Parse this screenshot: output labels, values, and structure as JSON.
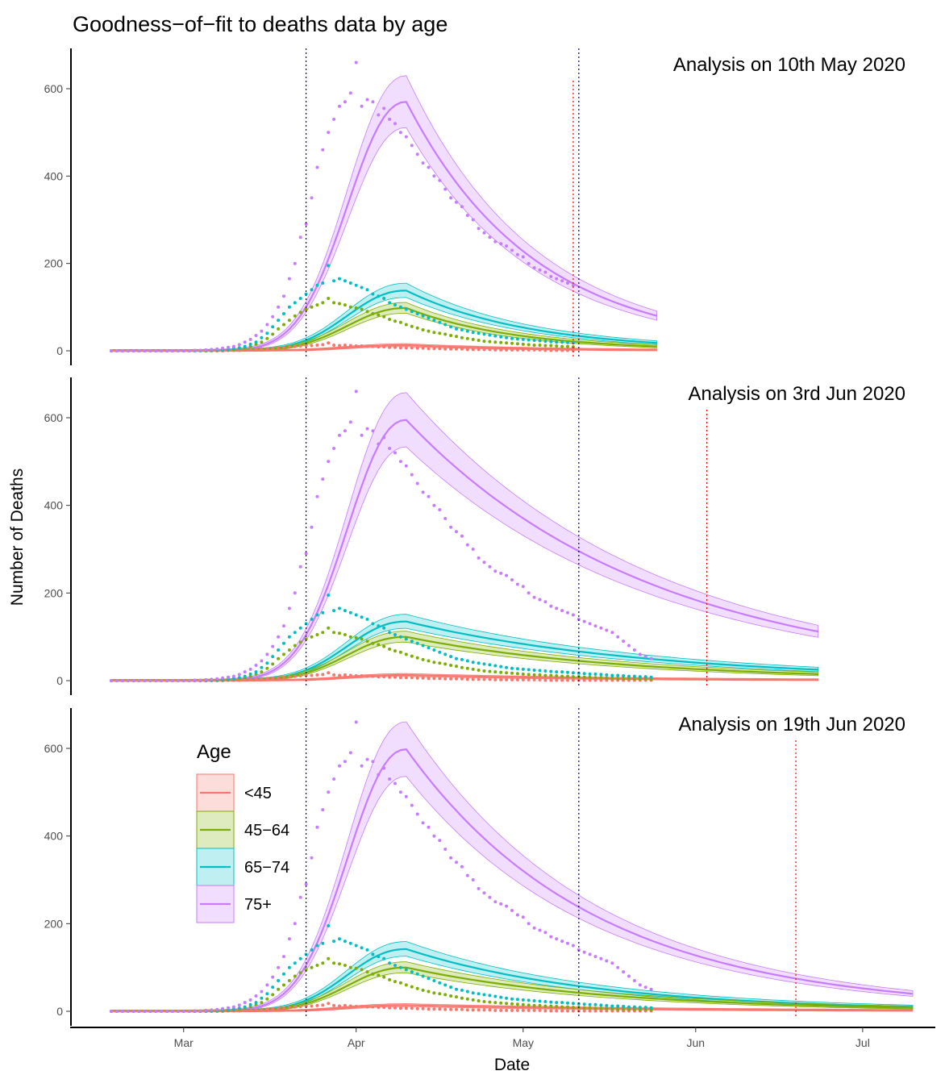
{
  "chart_data": {
    "type": "line",
    "title": "Goodness−of−fit to deaths data by age",
    "xlabel": "Date",
    "ylabel": "Number of Deaths",
    "x_axis": {
      "ticks": [
        {
          "date": "2020-03-01",
          "label": "Mar"
        },
        {
          "date": "2020-04-01",
          "label": "Apr"
        },
        {
          "date": "2020-05-01",
          "label": "May"
        },
        {
          "date": "2020-06-01",
          "label": "Jun"
        },
        {
          "date": "2020-07-01",
          "label": "Jul"
        }
      ],
      "range": [
        "2020-02-17",
        "2020-07-10"
      ]
    },
    "y_axis": {
      "ticks": [
        0,
        200,
        400,
        600
      ],
      "range": [
        -20,
        700
      ]
    },
    "grid": false,
    "legend": {
      "title": "Age",
      "placement": "inside-left-bottom-panel",
      "entries": [
        {
          "key": "lt45",
          "label": "<45"
        },
        {
          "key": "45_64",
          "label": "45−64"
        },
        {
          "key": "65_74",
          "label": "65−74"
        },
        {
          "key": "75p",
          "label": "75+"
        }
      ]
    },
    "series_colors": {
      "lt45": "#F8766D",
      "45_64": "#7CAE00",
      "65_74": "#00BFC4",
      "75p": "#C77CFF"
    },
    "shared_vlines": [
      {
        "date": "2020-03-23",
        "color": "#000080"
      },
      {
        "date": "2020-05-11",
        "color": "#000080"
      }
    ],
    "series_peak_fits": {
      "lt45": {
        "peak_date": "2020-04-09",
        "peak": 14,
        "final": 2
      },
      "45_64": {
        "peak_date": "2020-04-09",
        "peak": 100,
        "final": 8
      },
      "65_74": {
        "peak_date": "2020-04-09",
        "peak": 142,
        "final": 10
      },
      "75p": {
        "peak_date": "2020-04-09",
        "peak": 598,
        "final": 40
      }
    },
    "panels": [
      {
        "title": "Analysis on 10th May 2020",
        "analysis_date": "2020-05-10",
        "fit_end": "2020-05-25",
        "fit_end_values": {
          "lt45": 2,
          "45_64": 10,
          "65_74": 18,
          "75p": 80
        },
        "peaks": {
          "lt45": 13,
          "45_64": 98,
          "65_74": 138,
          "75p": 570
        }
      },
      {
        "title": "Analysis on 3rd Jun 2020",
        "analysis_date": "2020-06-03",
        "fit_end": "2020-06-23",
        "fit_end_values": {
          "lt45": 2,
          "45_64": 15,
          "65_74": 25,
          "75p": 112
        },
        "peaks": {
          "lt45": 13,
          "45_64": 100,
          "65_74": 135,
          "75p": 595
        }
      },
      {
        "title": "Analysis on 19th Jun 2020",
        "analysis_date": "2020-06-19",
        "fit_end": "2020-07-10",
        "fit_end_values": {
          "lt45": 2,
          "45_64": 8,
          "65_74": 10,
          "75p": 40
        },
        "peaks": {
          "lt45": 14,
          "45_64": 100,
          "65_74": 142,
          "75p": 598
        }
      }
    ],
    "observed_data": {
      "start": "2020-02-17",
      "note_dates": "daily values; 75+ up to data cutoff",
      "75p": [
        0,
        0,
        0,
        0,
        0,
        0,
        0,
        0,
        0,
        0,
        0,
        0,
        0,
        0,
        0,
        1,
        1,
        2,
        3,
        4,
        6,
        8,
        10,
        14,
        20,
        26,
        35,
        45,
        60,
        78,
        100,
        125,
        165,
        200,
        260,
        290,
        350,
        420,
        460,
        500,
        530,
        560,
        570,
        590,
        660,
        560,
        575,
        570,
        540,
        555,
        530,
        520,
        500,
        490,
        470,
        450,
        430,
        420,
        400,
        390,
        370,
        350,
        340,
        330,
        310,
        300,
        280,
        270,
        260,
        250,
        245,
        240,
        230,
        220,
        215,
        200,
        190,
        185,
        180,
        170,
        165,
        160,
        155,
        150,
        140,
        135,
        130,
        125,
        120,
        115,
        110,
        100,
        90,
        80,
        70,
        60,
        55,
        50
      ],
      "65_74": [
        0,
        0,
        0,
        0,
        0,
        0,
        0,
        0,
        0,
        0,
        0,
        0,
        0,
        0,
        0,
        0,
        0,
        1,
        1,
        2,
        2,
        3,
        5,
        7,
        10,
        15,
        20,
        30,
        40,
        55,
        70,
        85,
        100,
        110,
        120,
        130,
        140,
        150,
        155,
        195,
        160,
        165,
        160,
        155,
        150,
        145,
        140,
        130,
        125,
        120,
        110,
        105,
        100,
        95,
        90,
        85,
        80,
        75,
        70,
        65,
        60,
        55,
        50,
        48,
        45,
        42,
        40,
        38,
        36,
        34,
        32,
        30,
        28,
        27,
        26,
        25,
        24,
        23,
        22,
        21,
        20,
        20,
        19,
        18,
        17,
        16,
        15,
        15,
        14,
        13,
        12,
        12,
        11,
        10,
        10,
        9,
        9,
        8
      ],
      "45_64": [
        0,
        0,
        0,
        0,
        0,
        0,
        0,
        0,
        0,
        0,
        0,
        0,
        0,
        0,
        0,
        0,
        0,
        0,
        1,
        1,
        2,
        2,
        3,
        5,
        7,
        10,
        15,
        20,
        28,
        38,
        50,
        60,
        70,
        80,
        88,
        95,
        100,
        105,
        110,
        120,
        110,
        108,
        105,
        100,
        98,
        95,
        90,
        85,
        82,
        78,
        72,
        68,
        65,
        60,
        56,
        52,
        48,
        45,
        42,
        40,
        38,
        35,
        33,
        30,
        28,
        26,
        24,
        22,
        21,
        20,
        19,
        18,
        17,
        16,
        15,
        14,
        13,
        13,
        12,
        12,
        11,
        10,
        10,
        9,
        9,
        8,
        8,
        7,
        7,
        6,
        6,
        5,
        5,
        5,
        4,
        4,
        4,
        3
      ],
      "lt45": [
        0,
        0,
        0,
        0,
        0,
        0,
        0,
        0,
        0,
        0,
        0,
        0,
        0,
        0,
        0,
        0,
        0,
        0,
        0,
        0,
        0,
        1,
        1,
        1,
        2,
        2,
        3,
        4,
        5,
        6,
        7,
        8,
        9,
        10,
        11,
        12,
        12,
        13,
        14,
        18,
        13,
        12,
        13,
        12,
        11,
        11,
        10,
        10,
        9,
        9,
        8,
        8,
        7,
        7,
        7,
        6,
        6,
        5,
        5,
        5,
        4,
        4,
        4,
        4,
        3,
        3,
        3,
        3,
        3,
        2,
        2,
        2,
        2,
        2,
        2,
        2,
        2,
        2,
        1,
        1,
        1,
        1,
        1,
        1,
        1,
        1,
        1,
        1,
        1,
        1,
        1,
        1,
        1,
        1,
        1,
        1,
        1,
        1
      ]
    }
  }
}
